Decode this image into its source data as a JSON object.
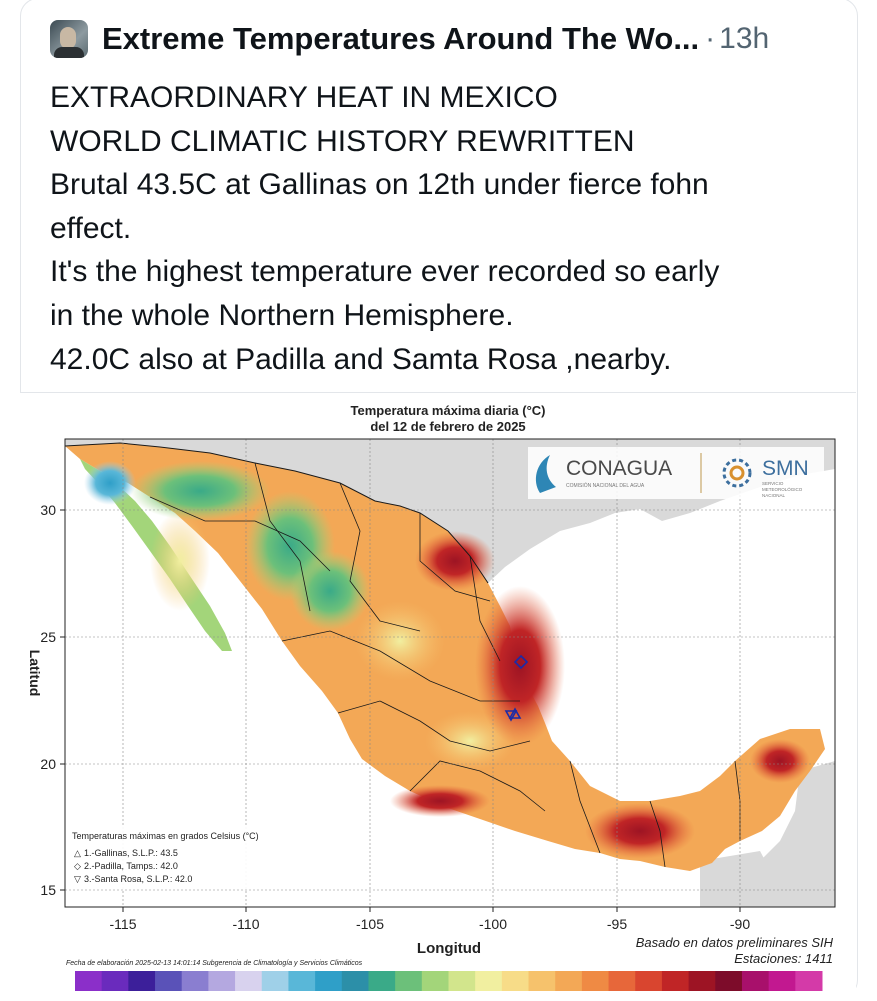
{
  "post": {
    "author": "Extreme Temperatures Around The Wo...",
    "separator": "·",
    "time": "13h",
    "lines": [
      "EXTRAORDINARY HEAT IN MEXICO",
      "WORLD CLIMATIC HISTORY REWRITTEN",
      "Brutal 43.5C at Gallinas on 12th under fierce fohn",
      "effect.",
      "It's the highest temperature ever recorded so early",
      "in the whole Northern Hemisphere.",
      "42.0C also at Padilla and Samta Rosa ,nearby."
    ]
  },
  "map": {
    "title_line1": "Temperatura máxima diaria (°C)",
    "title_line2": "del 12 de febrero de 2025",
    "xlabel": "Longitud",
    "ylabel": "Latitud",
    "x_ticks": [
      "-115",
      "-110",
      "-105",
      "-100",
      "-95",
      "-90"
    ],
    "y_ticks": [
      "30",
      "25",
      "20",
      "15"
    ],
    "logo_conagua": "CONAGUA",
    "logo_conagua_sub": "COMISIÓN NACIONAL DEL AGUA",
    "logo_smn": "SMN",
    "logo_smn_sub1": "SERVICIO",
    "logo_smn_sub2": "METEOROLÓGICO",
    "logo_smn_sub3": "NACIONAL",
    "legend_title": "Temperaturas máximas en grados Celsius (°C)",
    "legend_items": [
      "1.-Gallinas, S.L.P.: 43.5",
      "2.-Padilla, Tamps.: 42.0",
      "3.-Santa Rosa, S.L.P.: 42.0"
    ],
    "note1": "Basado en datos preliminares SIH",
    "note2": "Estaciones:  1411",
    "footer": "Fecha de elaboración 2025-02-13 14:01:14 Subgerencia de Climatología y Servicios Climáticos",
    "colorbar": [
      "#8b2fc9",
      "#6a2bbd",
      "#3c1f9a",
      "#5a52b8",
      "#8a7ed0",
      "#b4a8e0",
      "#d8d2ee",
      "#9fd0e8",
      "#59b7d8",
      "#2f9fc8",
      "#2c8fa8",
      "#3aaa88",
      "#6cc07a",
      "#a3d57a",
      "#d2e58c",
      "#f1efa0",
      "#f7dc88",
      "#f6c26c",
      "#f3a856",
      "#ef8a44",
      "#e7673a",
      "#d9452f",
      "#c02526",
      "#9d1424",
      "#7d0c2a",
      "#a8106b",
      "#c21890",
      "#d43aa8"
    ],
    "colors": {
      "sea": "#ffffff",
      "land_outside": "#d9d9d9",
      "border": "#1a1a1a",
      "station": "#1a2ba8"
    }
  }
}
